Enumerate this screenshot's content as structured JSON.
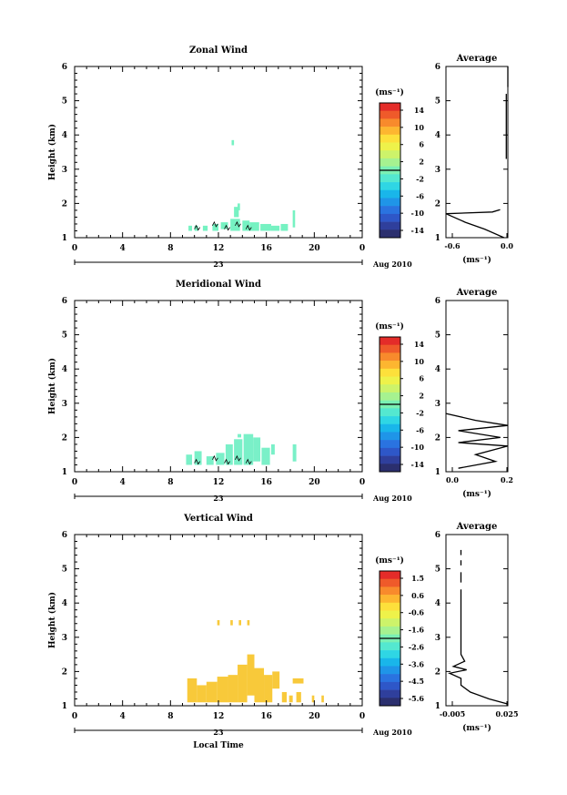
{
  "panels": [
    {
      "title": "Zonal Wind",
      "ylabel": "Height (km)",
      "yticks": [
        "1",
        "2",
        "3",
        "4",
        "5",
        "6"
      ],
      "xticks": [
        "0",
        "4",
        "8",
        "12",
        "16",
        "20",
        "0"
      ],
      "date_day": "23",
      "date_month": "Aug 2010",
      "xlabel": "",
      "colorbar_unit": "(ms⁻¹)",
      "colorbar_labels": [
        "14",
        "10",
        "6",
        "2",
        "-2",
        "-6",
        "-10",
        "-14"
      ],
      "avg_title": "Average",
      "avg_yticks": [
        "1",
        "2",
        "3",
        "4",
        "5",
        "6"
      ],
      "avg_xticks": [
        "-0.6",
        "0.0"
      ],
      "avg_xlabel": "(ms⁻¹)"
    },
    {
      "title": "Meridional Wind",
      "ylabel": "Height (km)",
      "yticks": [
        "1",
        "2",
        "3",
        "4",
        "5",
        "6"
      ],
      "xticks": [
        "0",
        "4",
        "8",
        "12",
        "16",
        "20",
        "0"
      ],
      "date_day": "23",
      "date_month": "Aug 2010",
      "xlabel": "",
      "colorbar_unit": "(ms⁻¹)",
      "colorbar_labels": [
        "14",
        "10",
        "6",
        "2",
        "-2",
        "-6",
        "-10",
        "-14"
      ],
      "avg_title": "Average",
      "avg_yticks": [
        "1",
        "2",
        "3",
        "4",
        "5",
        "6"
      ],
      "avg_xticks": [
        "0.0",
        "0.2"
      ],
      "avg_xlabel": "(ms⁻¹)"
    },
    {
      "title": "Vertical Wind",
      "ylabel": "Height (km)",
      "yticks": [
        "1",
        "2",
        "3",
        "4",
        "5",
        "6"
      ],
      "xticks": [
        "0",
        "4",
        "8",
        "12",
        "16",
        "20",
        "0"
      ],
      "date_day": "23",
      "date_month": "Aug 2010",
      "xlabel": "Local Time",
      "colorbar_unit": "(ms⁻¹)",
      "colorbar_labels": [
        "1.5",
        "0.6",
        "-0.6",
        "-1.6",
        "-2.6",
        "-3.6",
        "-4.5",
        "-5.6"
      ],
      "avg_title": "Average",
      "avg_yticks": [
        "1",
        "2",
        "3",
        "4",
        "5",
        "6"
      ],
      "avg_xticks": [
        "-0.005",
        "0.025"
      ],
      "avg_xlabel": "(ms⁻¹)"
    }
  ],
  "colors": {
    "scale": [
      "#2b2f6e",
      "#2f3f9c",
      "#2e57c8",
      "#2a73e0",
      "#1f95e8",
      "#19b6ea",
      "#2fd6e4",
      "#54e8d0",
      "#7af0b4",
      "#a6f290",
      "#cdf36a",
      "#eef24a",
      "#fde03b",
      "#fdb630",
      "#f88a2c",
      "#ef5a2a",
      "#e42c29"
    ],
    "zonal_fill": "#76f2c2",
    "meridional_fill": "#7af0c8",
    "vertical_fill": "#f8c93a"
  },
  "chart_data": [
    {
      "type": "heatmap",
      "title": "Zonal Wind",
      "x_range": [
        0,
        24
      ],
      "y_range": [
        1,
        6
      ],
      "cells": [
        {
          "t": 9.5,
          "h": 1.2,
          "dt": 0.3,
          "dh": 0.15
        },
        {
          "t": 10.0,
          "h": 1.2,
          "dt": 0.3,
          "dh": 0.15
        },
        {
          "t": 10.7,
          "h": 1.2,
          "dt": 0.4,
          "dh": 0.15
        },
        {
          "t": 11.5,
          "h": 1.2,
          "dt": 0.5,
          "dh": 0.2
        },
        {
          "t": 12.2,
          "h": 1.25,
          "dt": 0.6,
          "dh": 0.2
        },
        {
          "t": 13.0,
          "h": 1.2,
          "dt": 0.8,
          "dh": 0.35
        },
        {
          "t": 13.3,
          "h": 1.6,
          "dt": 0.4,
          "dh": 0.3
        },
        {
          "t": 13.6,
          "h": 1.8,
          "dt": 0.2,
          "dh": 0.2
        },
        {
          "t": 14.0,
          "h": 1.2,
          "dt": 0.6,
          "dh": 0.3
        },
        {
          "t": 14.6,
          "h": 1.2,
          "dt": 0.8,
          "dh": 0.25
        },
        {
          "t": 15.5,
          "h": 1.2,
          "dt": 0.9,
          "dh": 0.2
        },
        {
          "t": 16.4,
          "h": 1.2,
          "dt": 0.7,
          "dh": 0.15
        },
        {
          "t": 17.2,
          "h": 1.2,
          "dt": 0.6,
          "dh": 0.2
        },
        {
          "t": 18.2,
          "h": 1.3,
          "dt": 0.2,
          "dh": 0.5
        },
        {
          "t": 13.1,
          "h": 3.7,
          "dt": 0.2,
          "dh": 0.15
        }
      ],
      "average_profile": {
        "x_range": [
          -0.8,
          0.0
        ],
        "points": [
          [
            -0.05,
            1.0
          ],
          [
            -0.3,
            1.25
          ],
          [
            -0.55,
            1.45
          ],
          [
            -0.8,
            1.7
          ],
          [
            -0.2,
            1.75
          ],
          [
            -0.1,
            1.82
          ]
        ],
        "segments": [
          [
            [
              -0.02,
              3.3
            ],
            [
              -0.02,
              5.2
            ]
          ],
          [
            [
              0.0,
              5.4
            ],
            [
              0.0,
              6.0
            ]
          ]
        ]
      }
    },
    {
      "type": "heatmap",
      "title": "Meridional Wind",
      "x_range": [
        0,
        24
      ],
      "y_range": [
        1,
        6
      ],
      "cells": [
        {
          "t": 9.3,
          "h": 1.2,
          "dt": 0.5,
          "dh": 0.3
        },
        {
          "t": 10.0,
          "h": 1.2,
          "dt": 0.6,
          "dh": 0.4
        },
        {
          "t": 11.0,
          "h": 1.2,
          "dt": 0.6,
          "dh": 0.25
        },
        {
          "t": 11.8,
          "h": 1.2,
          "dt": 0.7,
          "dh": 0.35
        },
        {
          "t": 12.6,
          "h": 1.2,
          "dt": 0.6,
          "dh": 0.6
        },
        {
          "t": 13.3,
          "h": 1.2,
          "dt": 0.7,
          "dh": 0.75
        },
        {
          "t": 14.1,
          "h": 1.2,
          "dt": 0.8,
          "dh": 0.9
        },
        {
          "t": 14.9,
          "h": 1.3,
          "dt": 0.6,
          "dh": 0.7
        },
        {
          "t": 15.6,
          "h": 1.2,
          "dt": 0.7,
          "dh": 0.5
        },
        {
          "t": 16.4,
          "h": 1.5,
          "dt": 0.3,
          "dh": 0.3
        },
        {
          "t": 18.2,
          "h": 1.3,
          "dt": 0.3,
          "dh": 0.5
        },
        {
          "t": 13.6,
          "h": 2.0,
          "dt": 0.3,
          "dh": 0.1
        }
      ],
      "average_profile": {
        "x_range": [
          0.0,
          0.25
        ],
        "points": [
          [
            0.05,
            1.1
          ],
          [
            0.2,
            1.3
          ],
          [
            0.12,
            1.5
          ],
          [
            0.25,
            1.75
          ],
          [
            0.05,
            1.85
          ],
          [
            0.22,
            2.0
          ],
          [
            0.05,
            2.2
          ],
          [
            0.25,
            2.35
          ],
          [
            0.12,
            2.5
          ],
          [
            0.0,
            2.7
          ]
        ],
        "segments": []
      }
    },
    {
      "type": "heatmap",
      "title": "Vertical Wind",
      "x_range": [
        0,
        24
      ],
      "y_range": [
        1,
        6
      ],
      "cells": [
        {
          "t": 9.4,
          "h": 1.1,
          "dt": 0.8,
          "dh": 0.7
        },
        {
          "t": 10.2,
          "h": 1.1,
          "dt": 0.8,
          "dh": 0.5
        },
        {
          "t": 11.0,
          "h": 1.1,
          "dt": 0.9,
          "dh": 0.6
        },
        {
          "t": 11.9,
          "h": 1.1,
          "dt": 0.9,
          "dh": 0.75
        },
        {
          "t": 12.8,
          "h": 1.1,
          "dt": 0.8,
          "dh": 0.8
        },
        {
          "t": 13.6,
          "h": 1.1,
          "dt": 0.8,
          "dh": 1.1
        },
        {
          "t": 14.4,
          "h": 1.3,
          "dt": 0.6,
          "dh": 1.2
        },
        {
          "t": 15.0,
          "h": 1.1,
          "dt": 0.8,
          "dh": 1.0
        },
        {
          "t": 15.8,
          "h": 1.1,
          "dt": 0.7,
          "dh": 0.8
        },
        {
          "t": 16.5,
          "h": 1.5,
          "dt": 0.6,
          "dh": 0.5
        },
        {
          "t": 17.3,
          "h": 1.1,
          "dt": 0.4,
          "dh": 0.3
        },
        {
          "t": 17.9,
          "h": 1.1,
          "dt": 0.3,
          "dh": 0.2
        },
        {
          "t": 18.5,
          "h": 1.1,
          "dt": 0.4,
          "dh": 0.3
        },
        {
          "t": 18.2,
          "h": 1.65,
          "dt": 0.9,
          "dh": 0.15
        },
        {
          "t": 19.8,
          "h": 1.1,
          "dt": 0.2,
          "dh": 0.2
        },
        {
          "t": 20.6,
          "h": 1.1,
          "dt": 0.2,
          "dh": 0.2
        },
        {
          "t": 11.9,
          "h": 3.35,
          "dt": 0.2,
          "dh": 0.15
        },
        {
          "t": 13.0,
          "h": 3.35,
          "dt": 0.2,
          "dh": 0.15
        },
        {
          "t": 13.7,
          "h": 3.35,
          "dt": 0.2,
          "dh": 0.15
        },
        {
          "t": 14.4,
          "h": 3.35,
          "dt": 0.2,
          "dh": 0.15
        }
      ],
      "average_profile": {
        "x_range": [
          -0.008,
          0.025
        ],
        "points": [
          [
            0.025,
            1.05
          ],
          [
            0.015,
            1.2
          ],
          [
            0.005,
            1.4
          ],
          [
            0.0,
            1.6
          ],
          [
            0.0,
            1.8
          ],
          [
            -0.006,
            1.95
          ],
          [
            0.003,
            2.05
          ],
          [
            -0.004,
            2.15
          ],
          [
            0.002,
            2.3
          ],
          [
            0.0,
            2.5
          ],
          [
            0.0,
            4.4
          ]
        ],
        "segments": [
          [
            [
              0.0,
              4.6
            ],
            [
              0.0,
              4.9
            ]
          ],
          [
            [
              0.0,
              5.1
            ],
            [
              0.0,
              5.25
            ]
          ],
          [
            [
              0.0,
              5.4
            ],
            [
              0.0,
              5.55
            ]
          ]
        ]
      }
    }
  ]
}
